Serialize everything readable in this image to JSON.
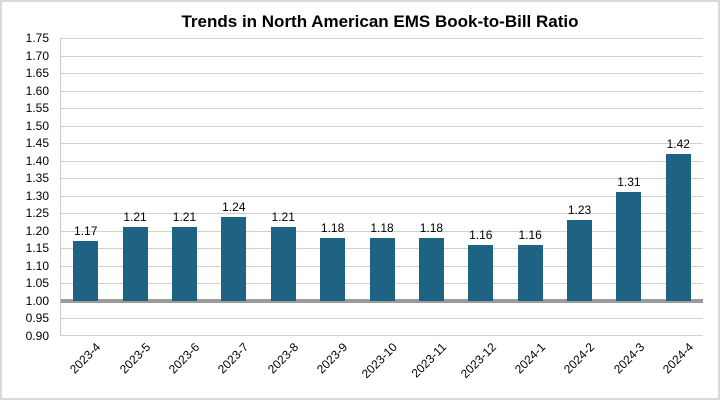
{
  "frame": {
    "background": "#FFFFFF",
    "border_color": "#D9D9D9"
  },
  "chart_data": {
    "type": "bar",
    "title": "Trends in North American EMS Book-to-Bill Ratio",
    "categories": [
      "2023-4",
      "2023-5",
      "2023-6",
      "2023-7",
      "2023-8",
      "2023-9",
      "2023-10",
      "2023-11",
      "2023-12",
      "2024-1",
      "2024-2",
      "2024-3",
      "2024-4"
    ],
    "values": [
      1.17,
      1.21,
      1.21,
      1.24,
      1.21,
      1.18,
      1.18,
      1.18,
      1.16,
      1.16,
      1.23,
      1.31,
      1.42
    ],
    "data_labels": [
      "1.17",
      "1.21",
      "1.21",
      "1.24",
      "1.21",
      "1.18",
      "1.18",
      "1.18",
      "1.16",
      "1.16",
      "1.23",
      "1.31",
      "1.42"
    ],
    "xlabel": "",
    "ylabel": "",
    "ylim": [
      0.9,
      1.75
    ],
    "ytick_step": 0.05,
    "yticks": [
      "1.75",
      "1.70",
      "1.65",
      "1.60",
      "1.55",
      "1.50",
      "1.45",
      "1.40",
      "1.35",
      "1.30",
      "1.25",
      "1.20",
      "1.15",
      "1.10",
      "1.05",
      "1.00",
      "0.95",
      "0.90"
    ],
    "bar_baseline": 1.0,
    "grid": true,
    "legend": "none",
    "colors": {
      "bar": "#1E6384",
      "gridline": "#D0D0D0",
      "baseline_axis": "#9B9B9B",
      "text": "#000000"
    }
  }
}
